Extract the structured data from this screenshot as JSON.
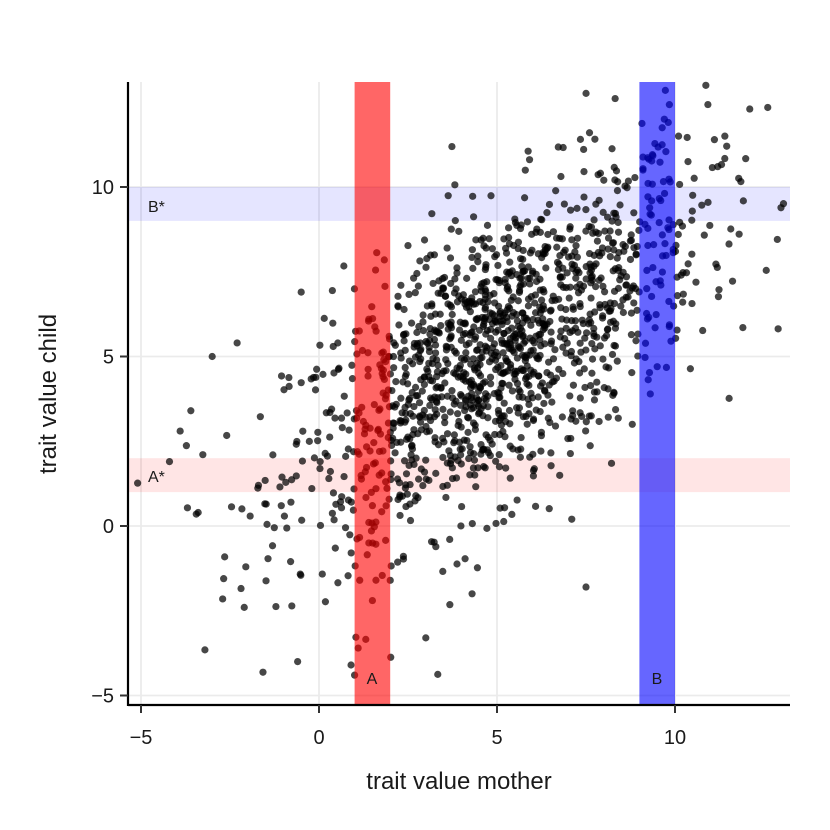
{
  "chart_data": {
    "type": "scatter",
    "title": "",
    "xlabel": "trait value mother",
    "ylabel": "trait value child",
    "xlim": [
      -5.3,
      13.2
    ],
    "ylim": [
      -5.3,
      13.2
    ],
    "xticks": [
      -5,
      0,
      5,
      10
    ],
    "yticks": [
      -5,
      0,
      5,
      10
    ],
    "xtick_labels": [
      "−5",
      "0",
      "5",
      "10"
    ],
    "ytick_labels": [
      "−5",
      "0",
      "5",
      "10"
    ],
    "grid": true,
    "point_color": "#000000",
    "point_alpha": 0.72,
    "n_points": 1500,
    "regression": {
      "slope": 0.62,
      "intercept": 2.0,
      "x_mean": 5.0,
      "x_sd": 2.9
    },
    "bands": [
      {
        "label": "A",
        "orientation": "vertical",
        "range": [
          1,
          2
        ],
        "color": "#ff0000",
        "opacity": 0.6
      },
      {
        "label": "B",
        "orientation": "vertical",
        "range": [
          9,
          10
        ],
        "color": "#0000ff",
        "opacity": 0.6
      },
      {
        "label": "A*",
        "orientation": "horizontal",
        "range": [
          1,
          2
        ],
        "color": "#ff0000",
        "opacity": 0.1
      },
      {
        "label": "B*",
        "orientation": "horizontal",
        "range": [
          9,
          10
        ],
        "color": "#0000ff",
        "opacity": 0.1
      }
    ],
    "points": [
      [
        -4.2,
        1.9
      ],
      [
        -3.9,
        2.8
      ],
      [
        -3.6,
        3.4
      ],
      [
        -3.0,
        5.0
      ],
      [
        -2.3,
        5.4
      ],
      [
        -2.1,
        -2.4
      ],
      [
        -1.7,
        1.2
      ],
      [
        -0.6,
        -4.0
      ],
      [
        -0.5,
        6.9
      ],
      [
        0.9,
        -4.1
      ],
      [
        1.0,
        -4.4
      ],
      [
        1.1,
        -3.6
      ],
      [
        1.4,
        6.1
      ],
      [
        1.5,
        -2.2
      ],
      [
        1.6,
        -1.6
      ],
      [
        2.3,
        7.1
      ],
      [
        3.0,
        -3.3
      ],
      [
        4.3,
        -2.0
      ],
      [
        7.1,
        0.2
      ],
      [
        7.5,
        -1.8
      ],
      [
        8.8,
        3.0
      ],
      [
        9.5,
        4.7
      ],
      [
        9.7,
        12.0
      ],
      [
        10.1,
        11.5
      ],
      [
        11.2,
        10.6
      ],
      [
        11.4,
        11.5
      ],
      [
        12.1,
        12.3
      ],
      [
        8.0,
        10.2
      ],
      [
        9.1,
        10.5
      ],
      [
        9.6,
        9.6
      ],
      [
        9.3,
        9.2
      ],
      [
        9.8,
        8.8
      ],
      [
        9.4,
        8.3
      ],
      [
        1.3,
        1.6
      ],
      [
        1.7,
        2.2
      ],
      [
        1.5,
        0.6
      ],
      [
        1.2,
        3.5
      ],
      [
        1.8,
        4.4
      ],
      [
        1.4,
        -0.5
      ],
      [
        1.6,
        1.1
      ]
    ]
  },
  "band_labels": {
    "A": "A",
    "B": "B",
    "A_star": "A*",
    "B_star": "B*"
  }
}
